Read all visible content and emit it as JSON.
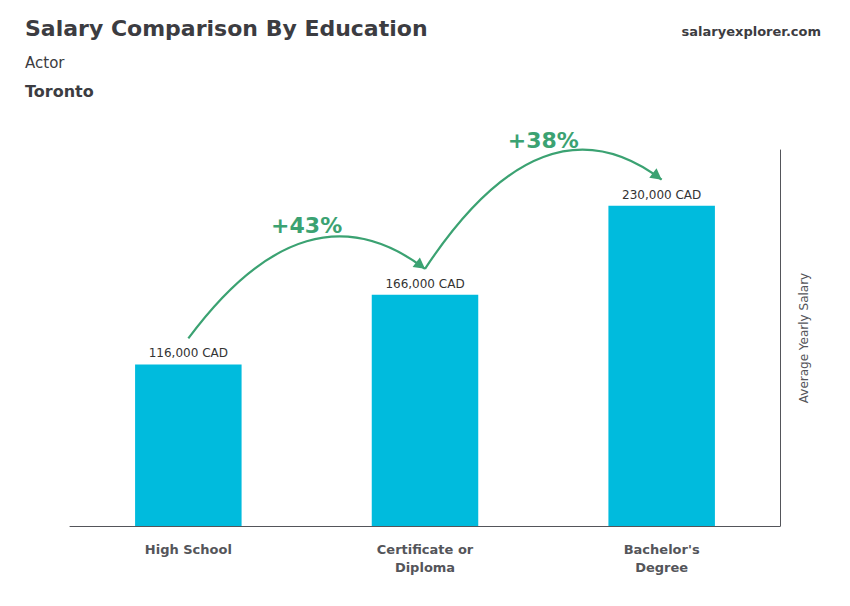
{
  "chart_data": {
    "type": "bar",
    "title": "Salary Comparison By Education",
    "subtitle": [
      "Actor",
      "Toronto"
    ],
    "source": "salaryexplorer.com",
    "ylabel": "Average Yearly Salary",
    "categories": [
      "High School",
      "Certificate or\nDiploma",
      "Bachelor's\nDegree"
    ],
    "values": [
      116000,
      166000,
      230000
    ],
    "value_labels": [
      "116,000 CAD",
      "166,000 CAD",
      "230,000 CAD"
    ],
    "data_labels": true,
    "annotations": [
      "+43%",
      "+38%"
    ],
    "color": "#00bbdd",
    "ylim": [
      0,
      270000
    ],
    "tick_labels": "x",
    "grid": false
  }
}
